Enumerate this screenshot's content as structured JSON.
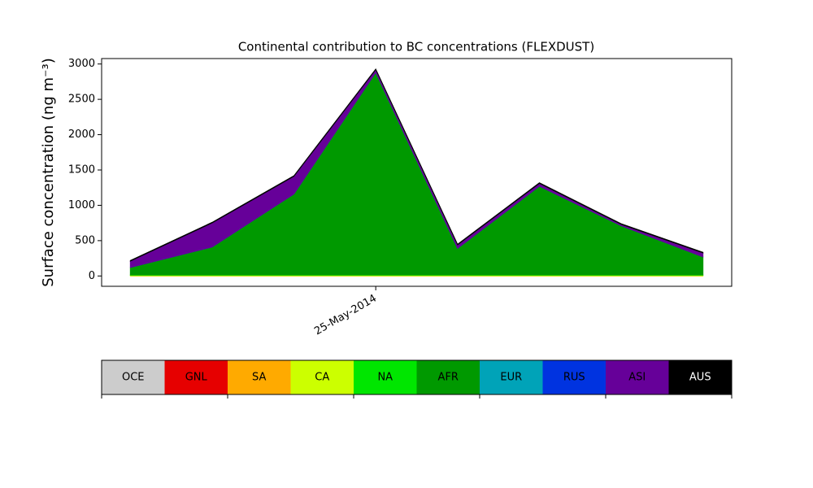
{
  "chart_data": {
    "type": "stackplot",
    "title": "Continental contribution to BC concentrations (FLEXDUST)",
    "y_label": "Surface concentration (ng m⁻³)",
    "categories": [
      null,
      null,
      null,
      "25-May-2014",
      null,
      null,
      null,
      null
    ],
    "ylim": [
      -146,
      3077
    ],
    "yticks": [
      0,
      500,
      1000,
      1500,
      2000,
      2500,
      3000
    ],
    "series": [
      {
        "name": "OCE",
        "color": "#cccccc",
        "values": [
          0,
          0,
          0,
          0,
          0,
          0,
          0,
          0
        ]
      },
      {
        "name": "GNL",
        "color": "#e60000",
        "values": [
          0,
          0,
          0,
          0,
          0,
          0,
          0,
          0
        ]
      },
      {
        "name": "SA",
        "color": "#ffaa00",
        "values": [
          0,
          0,
          0,
          0,
          0,
          0,
          0,
          0
        ]
      },
      {
        "name": "CA",
        "color": "#ccff00",
        "values": [
          10,
          10,
          10,
          10,
          10,
          10,
          10,
          10
        ]
      },
      {
        "name": "NA",
        "color": "#00e600",
        "values": [
          5,
          5,
          5,
          5,
          5,
          5,
          5,
          5
        ]
      },
      {
        "name": "AFR",
        "color": "#009900",
        "values": [
          105,
          395,
          1145,
          2865,
          375,
          1255,
          695,
          255
        ]
      },
      {
        "name": "EUR",
        "color": "#00a3b8",
        "values": [
          0,
          0,
          0,
          0,
          0,
          0,
          0,
          0
        ]
      },
      {
        "name": "RUS",
        "color": "#0033e0",
        "values": [
          0,
          0,
          0,
          0,
          0,
          0,
          0,
          0
        ]
      },
      {
        "name": "ASI",
        "color": "#660099",
        "values": [
          90,
          340,
          250,
          40,
          50,
          40,
          20,
          55
        ]
      },
      {
        "name": "AUS",
        "color": "#000000",
        "values": [
          10,
          10,
          10,
          10,
          10,
          10,
          10,
          10
        ]
      }
    ]
  }
}
